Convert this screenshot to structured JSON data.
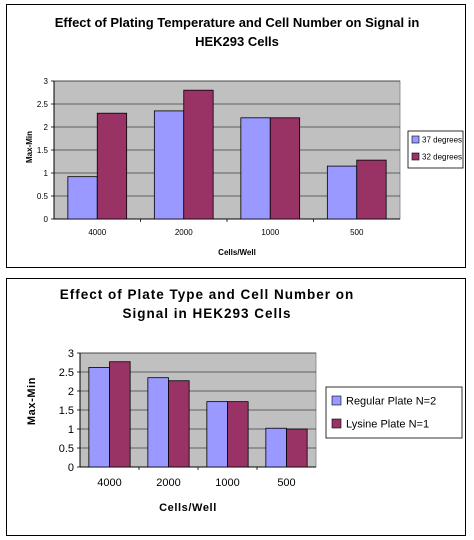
{
  "chart_data": [
    {
      "type": "bar",
      "title_lines": [
        "Effect of Plating Temperature and Cell Number on Signal in",
        "HEK293 Cells"
      ],
      "xlabel": "Cells/Well",
      "ylabel": "Max-Min",
      "categories": [
        "4000",
        "2000",
        "1000",
        "500"
      ],
      "series": [
        {
          "name": "37 degrees",
          "values": [
            0.92,
            2.35,
            2.2,
            1.15
          ]
        },
        {
          "name": "32 degrees",
          "values": [
            2.3,
            2.8,
            2.2,
            1.28
          ]
        }
      ],
      "ylim": [
        0,
        3
      ],
      "yticks": [
        "0",
        "0.5",
        "1",
        "1.5",
        "2",
        "2.5",
        "3"
      ],
      "legend_position": "right",
      "plot_background": "#c0c0c0",
      "colors": [
        "#9999ff",
        "#993366"
      ]
    },
    {
      "type": "bar",
      "title_lines": [
        "Effect of Plate Type and Cell Number on",
        "Signal in HEK293 Cells"
      ],
      "xlabel": "Cells/Well",
      "ylabel": "Max-Min",
      "categories": [
        "4000",
        "2000",
        "1000",
        "500"
      ],
      "series": [
        {
          "name": "Regular Plate N=2",
          "values": [
            2.62,
            2.35,
            1.72,
            1.02
          ]
        },
        {
          "name": "Lysine Plate N=1",
          "values": [
            2.77,
            2.27,
            1.72,
            1.0
          ]
        }
      ],
      "ylim": [
        0,
        3
      ],
      "yticks": [
        "0",
        "0.5",
        "1",
        "1.5",
        "2",
        "2.5",
        "3"
      ],
      "legend_position": "right",
      "plot_background": "#c0c0c0",
      "colors": [
        "#9999ff",
        "#993366"
      ]
    }
  ]
}
